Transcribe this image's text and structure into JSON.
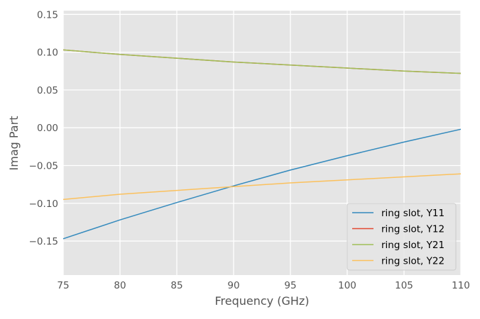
{
  "chart_data": {
    "type": "line",
    "title": "",
    "xlabel": "Frequency (GHz)",
    "ylabel": "Imag Part",
    "xlim": [
      75,
      110
    ],
    "ylim": [
      -0.195,
      0.155
    ],
    "xticks": [
      75,
      80,
      85,
      90,
      95,
      100,
      105,
      110
    ],
    "yticks": [
      -0.15,
      -0.1,
      -0.05,
      0.0,
      0.05,
      0.1,
      0.15
    ],
    "xtick_labels": [
      "75",
      "80",
      "85",
      "90",
      "95",
      "100",
      "105",
      "110"
    ],
    "ytick_labels": [
      "−0.15",
      "−0.10",
      "−0.05",
      "0.00",
      "0.05",
      "0.10",
      "0.15"
    ],
    "grid": true,
    "legend_position": "bottom-right",
    "x": [
      75,
      80,
      85,
      90,
      95,
      100,
      105,
      110
    ],
    "series": [
      {
        "name": "ring slot, Y11",
        "color": "#348abd",
        "values": [
          -0.147,
          -0.122,
          -0.099,
          -0.077,
          -0.056,
          -0.037,
          -0.019,
          -0.002
        ]
      },
      {
        "name": "ring slot, Y12",
        "color": "#e24a33",
        "values": [
          0.103,
          0.097,
          0.092,
          0.087,
          0.083,
          0.079,
          0.075,
          0.072
        ]
      },
      {
        "name": "ring slot, Y21",
        "color": "#a0c05a",
        "values": [
          0.103,
          0.097,
          0.092,
          0.087,
          0.083,
          0.079,
          0.075,
          0.072
        ]
      },
      {
        "name": "ring slot, Y22",
        "color": "#fbc15e",
        "values": [
          -0.095,
          -0.088,
          -0.083,
          -0.078,
          -0.073,
          -0.069,
          -0.065,
          -0.061
        ]
      }
    ]
  }
}
